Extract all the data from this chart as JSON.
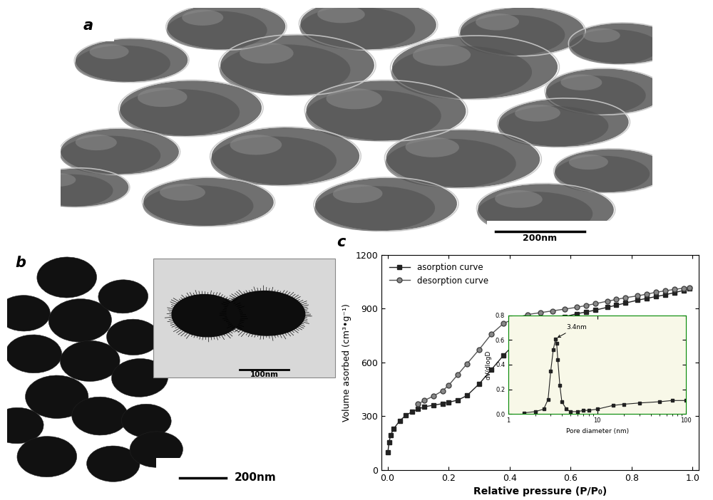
{
  "figure_width": 10.0,
  "figure_height": 7.02,
  "bg_color": "#ffffff",
  "panel_a_label": "a",
  "panel_b_label": "b",
  "panel_c_label": "c",
  "scale_200nm_a": "200nm",
  "scale_100nm_b": "100nm",
  "scale_200nm_b": "200nm",
  "ads_x": [
    0.001,
    0.005,
    0.01,
    0.02,
    0.04,
    0.06,
    0.08,
    0.1,
    0.12,
    0.15,
    0.18,
    0.2,
    0.23,
    0.26,
    0.3,
    0.34,
    0.38,
    0.42,
    0.46,
    0.5,
    0.54,
    0.58,
    0.62,
    0.65,
    0.68,
    0.72,
    0.75,
    0.78,
    0.82,
    0.85,
    0.88,
    0.91,
    0.94,
    0.97,
    0.99
  ],
  "ads_y": [
    100,
    155,
    195,
    230,
    275,
    305,
    325,
    340,
    352,
    362,
    370,
    378,
    390,
    415,
    480,
    560,
    640,
    710,
    760,
    800,
    832,
    855,
    872,
    882,
    892,
    908,
    920,
    932,
    948,
    958,
    968,
    978,
    990,
    1002,
    1012
  ],
  "des_x": [
    0.99,
    0.97,
    0.94,
    0.91,
    0.88,
    0.85,
    0.82,
    0.78,
    0.75,
    0.72,
    0.68,
    0.65,
    0.62,
    0.58,
    0.54,
    0.5,
    0.46,
    0.42,
    0.38,
    0.34,
    0.3,
    0.26,
    0.23,
    0.2,
    0.18,
    0.15,
    0.12,
    0.1
  ],
  "des_y": [
    1018,
    1015,
    1008,
    1000,
    992,
    982,
    972,
    962,
    952,
    942,
    928,
    918,
    908,
    898,
    888,
    878,
    868,
    848,
    818,
    758,
    672,
    592,
    532,
    472,
    442,
    412,
    388,
    368
  ],
  "inset_pore_x": [
    1.5,
    2.0,
    2.5,
    2.8,
    3.0,
    3.2,
    3.4,
    3.5,
    3.6,
    3.8,
    4.0,
    4.5,
    5.0,
    6.0,
    7.0,
    8.0,
    10.0,
    15.0,
    20.0,
    30.0,
    50.0,
    70.0,
    100.0
  ],
  "inset_pore_y": [
    0.01,
    0.02,
    0.04,
    0.12,
    0.35,
    0.52,
    0.61,
    0.57,
    0.44,
    0.23,
    0.1,
    0.04,
    0.02,
    0.02,
    0.03,
    0.03,
    0.04,
    0.07,
    0.08,
    0.09,
    0.1,
    0.11,
    0.11
  ],
  "ylabel_main": "Volume asorbed (cm³•g⁻¹)",
  "xlabel_main": "Relative pressure (P/P₀)",
  "ylabel_inset": "dV/dlogD",
  "xlabel_inset": "Pore diameter (nm)",
  "legend_ads": "asorption curve",
  "legend_des": "desorption curve",
  "annotation_pore": "3.4nm",
  "yticks_main": [
    0,
    300,
    600,
    900,
    1200
  ],
  "xticks_main": [
    0.0,
    0.2,
    0.4,
    0.6,
    0.8,
    1.0
  ],
  "line_color": "#222222",
  "marker_ads": "s",
  "marker_des": "o",
  "marker_size_ads": 4,
  "marker_size_des": 5,
  "sem_bg_color": "#2a2a2a",
  "tem_bg_color": "#aaaaaa",
  "tem_dark_color": "#111111",
  "inset_tem_bg": "#cccccc",
  "sem_particles": [
    [
      2.8,
      9.2,
      2.0,
      1.9,
      5
    ],
    [
      5.2,
      9.3,
      2.3,
      2.1,
      -8
    ],
    [
      7.8,
      9.0,
      2.1,
      2.0,
      10
    ],
    [
      9.5,
      8.5,
      1.8,
      1.7,
      -5
    ],
    [
      1.2,
      7.8,
      1.9,
      1.8,
      8
    ],
    [
      4.0,
      7.6,
      2.6,
      2.5,
      -3
    ],
    [
      7.0,
      7.5,
      2.8,
      2.6,
      6
    ],
    [
      9.2,
      6.5,
      2.0,
      1.9,
      -10
    ],
    [
      2.2,
      5.8,
      2.4,
      2.3,
      12
    ],
    [
      5.5,
      5.7,
      2.7,
      2.5,
      -5
    ],
    [
      8.5,
      5.2,
      2.2,
      2.0,
      7
    ],
    [
      1.0,
      4.0,
      2.0,
      1.9,
      -8
    ],
    [
      3.8,
      3.8,
      2.5,
      2.4,
      4
    ],
    [
      6.8,
      3.7,
      2.6,
      2.4,
      -6
    ],
    [
      9.3,
      3.2,
      1.9,
      1.8,
      9
    ],
    [
      2.5,
      1.9,
      2.2,
      2.0,
      -4
    ],
    [
      5.5,
      1.8,
      2.4,
      2.2,
      7
    ],
    [
      8.2,
      1.6,
      2.3,
      2.1,
      -9
    ],
    [
      0.3,
      2.5,
      1.7,
      1.6,
      3
    ]
  ],
  "tem_particles_main": [
    [
      1.8,
      9.0,
      1.8,
      1.7,
      5
    ],
    [
      0.5,
      7.5,
      1.6,
      1.5,
      -5
    ],
    [
      2.2,
      7.2,
      1.9,
      1.8,
      10
    ],
    [
      0.8,
      5.8,
      1.7,
      1.6,
      -8
    ],
    [
      2.5,
      5.5,
      1.8,
      1.7,
      6
    ],
    [
      1.5,
      4.0,
      1.9,
      1.8,
      -4
    ],
    [
      0.3,
      2.8,
      1.6,
      1.5,
      8
    ],
    [
      2.8,
      3.2,
      1.7,
      1.6,
      -7
    ],
    [
      1.2,
      1.5,
      1.8,
      1.7,
      5
    ],
    [
      3.2,
      1.2,
      1.6,
      1.5,
      -3
    ],
    [
      3.5,
      8.2,
      1.5,
      1.4,
      4
    ],
    [
      3.8,
      6.5,
      1.6,
      1.5,
      -6
    ],
    [
      4.0,
      4.8,
      1.7,
      1.6,
      9
    ],
    [
      4.2,
      3.0,
      1.5,
      1.4,
      -5
    ],
    [
      4.5,
      1.8,
      1.6,
      1.5,
      3
    ]
  ]
}
